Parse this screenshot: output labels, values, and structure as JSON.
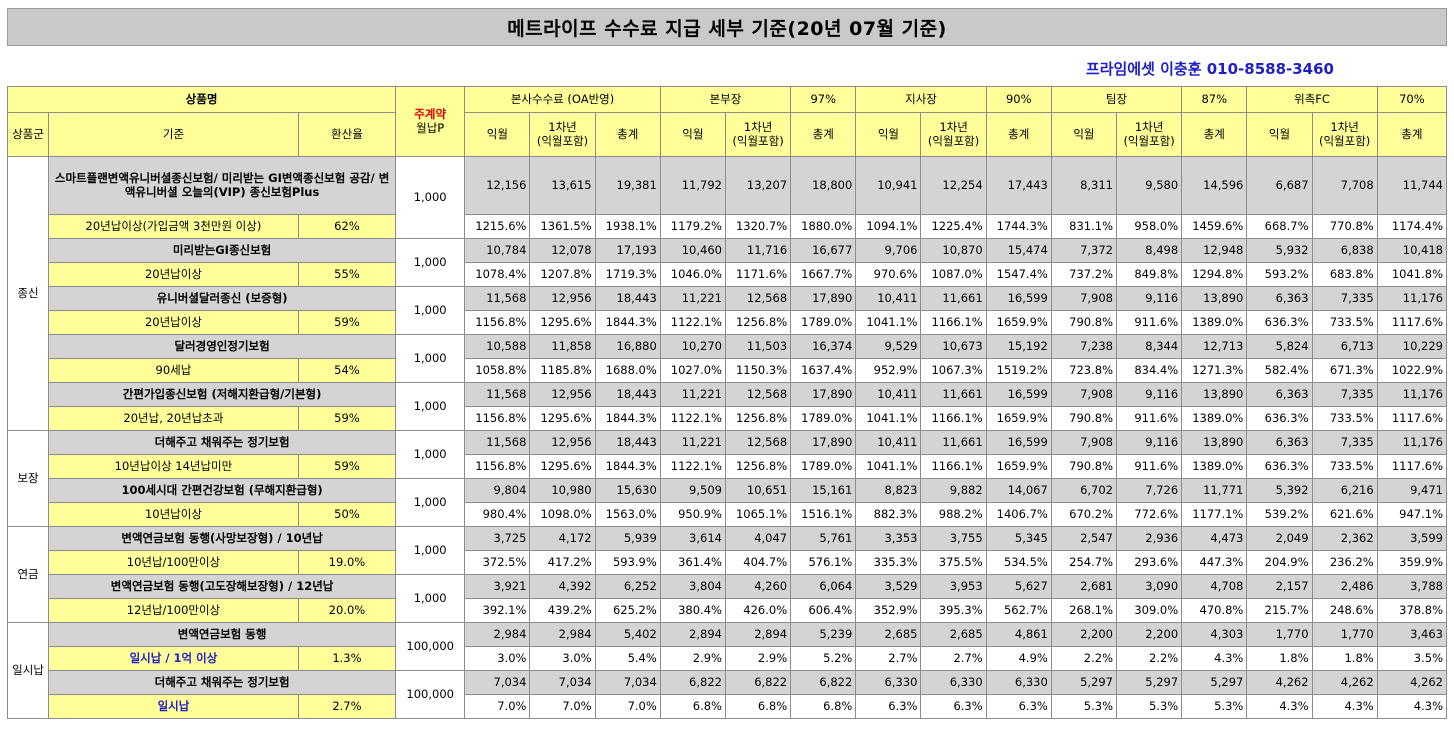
{
  "title": "메트라이프 수수료 지급 세부 기준(20년 07월 기준)",
  "contact": "프라임에셋 이충훈 010-8588-3460",
  "header": {
    "product_name": "상품명",
    "main_contract_line1": "주계약",
    "main_contract_line2": "월납P",
    "group_col": "상품군",
    "criteria_col": "기준",
    "rate_col": "환산율",
    "sections": [
      {
        "label": "본사수수료 (OA반영)",
        "pct": ""
      },
      {
        "label": "본부장",
        "pct": "97%"
      },
      {
        "label": "지사장",
        "pct": "90%"
      },
      {
        "label": "팀장",
        "pct": "87%"
      },
      {
        "label": "위촉FC",
        "pct": "70%"
      }
    ],
    "sub_ik": "익월",
    "sub_1y_line1": "1차년",
    "sub_1y_line2": "(익월포함)",
    "sub_total": "총계"
  },
  "groups": {
    "g1": "종신",
    "g2": "보장",
    "g3": "연금",
    "g4": "일시납"
  },
  "products": [
    {
      "name": "스마트플랜변액유니버셜종신보험/ 미리받는 GI변액종신보험 공감/ 변액유니버셜 오늘의(VIP) 종신보험Plus",
      "criteria": "20년납이상(가입금액 3천만원 이상)",
      "rate": "62%",
      "premium": "1,000",
      "values": [
        "12,156",
        "13,615",
        "19,381",
        "11,792",
        "13,207",
        "18,800",
        "10,941",
        "12,254",
        "17,443",
        "8,311",
        "9,580",
        "14,596",
        "6,687",
        "7,708",
        "11,744"
      ],
      "pcts": [
        "1215.6%",
        "1361.5%",
        "1938.1%",
        "1179.2%",
        "1320.7%",
        "1880.0%",
        "1094.1%",
        "1225.4%",
        "1744.3%",
        "831.1%",
        "958.0%",
        "1459.6%",
        "668.7%",
        "770.8%",
        "1174.4%"
      ]
    },
    {
      "name": "미리받는GI종신보험",
      "criteria": "20년납이상",
      "rate": "55%",
      "premium": "1,000",
      "values": [
        "10,784",
        "12,078",
        "17,193",
        "10,460",
        "11,716",
        "16,677",
        "9,706",
        "10,870",
        "15,474",
        "7,372",
        "8,498",
        "12,948",
        "5,932",
        "6,838",
        "10,418"
      ],
      "pcts": [
        "1078.4%",
        "1207.8%",
        "1719.3%",
        "1046.0%",
        "1171.6%",
        "1667.7%",
        "970.6%",
        "1087.0%",
        "1547.4%",
        "737.2%",
        "849.8%",
        "1294.8%",
        "593.2%",
        "683.8%",
        "1041.8%"
      ]
    },
    {
      "name": "유니버셜달러종신 (보증형)",
      "criteria": "20년납이상",
      "rate": "59%",
      "premium": "1,000",
      "values": [
        "11,568",
        "12,956",
        "18,443",
        "11,221",
        "12,568",
        "17,890",
        "10,411",
        "11,661",
        "16,599",
        "7,908",
        "9,116",
        "13,890",
        "6,363",
        "7,335",
        "11,176"
      ],
      "pcts": [
        "1156.8%",
        "1295.6%",
        "1844.3%",
        "1122.1%",
        "1256.8%",
        "1789.0%",
        "1041.1%",
        "1166.1%",
        "1659.9%",
        "790.8%",
        "911.6%",
        "1389.0%",
        "636.3%",
        "733.5%",
        "1117.6%"
      ]
    },
    {
      "name": "달러경영인정기보험",
      "criteria": "90세납",
      "rate": "54%",
      "premium": "1,000",
      "values": [
        "10,588",
        "11,858",
        "16,880",
        "10,270",
        "11,503",
        "16,374",
        "9,529",
        "10,673",
        "15,192",
        "7,238",
        "8,344",
        "12,713",
        "5,824",
        "6,713",
        "10,229"
      ],
      "pcts": [
        "1058.8%",
        "1185.8%",
        "1688.0%",
        "1027.0%",
        "1150.3%",
        "1637.4%",
        "952.9%",
        "1067.3%",
        "1519.2%",
        "723.8%",
        "834.4%",
        "1271.3%",
        "582.4%",
        "671.3%",
        "1022.9%"
      ]
    },
    {
      "name": "간편가입종신보험 (저해지환급형/기본형)",
      "criteria": "20년납, 20년납초과",
      "rate": "59%",
      "premium": "1,000",
      "values": [
        "11,568",
        "12,956",
        "18,443",
        "11,221",
        "12,568",
        "17,890",
        "10,411",
        "11,661",
        "16,599",
        "7,908",
        "9,116",
        "13,890",
        "6,363",
        "7,335",
        "11,176"
      ],
      "pcts": [
        "1156.8%",
        "1295.6%",
        "1844.3%",
        "1122.1%",
        "1256.8%",
        "1789.0%",
        "1041.1%",
        "1166.1%",
        "1659.9%",
        "790.8%",
        "911.6%",
        "1389.0%",
        "636.3%",
        "733.5%",
        "1117.6%"
      ]
    },
    {
      "name": "더해주고 채워주는 정기보험",
      "criteria": "10년납이상 14년납미만",
      "rate": "59%",
      "premium": "1,000",
      "values": [
        "11,568",
        "12,956",
        "18,443",
        "11,221",
        "12,568",
        "17,890",
        "10,411",
        "11,661",
        "16,599",
        "7,908",
        "9,116",
        "13,890",
        "6,363",
        "7,335",
        "11,176"
      ],
      "pcts": [
        "1156.8%",
        "1295.6%",
        "1844.3%",
        "1122.1%",
        "1256.8%",
        "1789.0%",
        "1041.1%",
        "1166.1%",
        "1659.9%",
        "790.8%",
        "911.6%",
        "1389.0%",
        "636.3%",
        "733.5%",
        "1117.6%"
      ]
    },
    {
      "name": "100세시대 간편건강보험 (무해지환급형)",
      "criteria": "10년납이상",
      "rate": "50%",
      "premium": "1,000",
      "values": [
        "9,804",
        "10,980",
        "15,630",
        "9,509",
        "10,651",
        "15,161",
        "8,823",
        "9,882",
        "14,067",
        "6,702",
        "7,726",
        "11,771",
        "5,392",
        "6,216",
        "9,471"
      ],
      "pcts": [
        "980.4%",
        "1098.0%",
        "1563.0%",
        "950.9%",
        "1065.1%",
        "1516.1%",
        "882.3%",
        "988.2%",
        "1406.7%",
        "670.2%",
        "772.6%",
        "1177.1%",
        "539.2%",
        "621.6%",
        "947.1%"
      ]
    },
    {
      "name": "변액연금보험 동행(사망보장형) / 10년납",
      "criteria": "10년납/100만이상",
      "rate": "19.0%",
      "premium": "1,000",
      "values": [
        "3,725",
        "4,172",
        "5,939",
        "3,614",
        "4,047",
        "5,761",
        "3,353",
        "3,755",
        "5,345",
        "2,547",
        "2,936",
        "4,473",
        "2,049",
        "2,362",
        "3,599"
      ],
      "pcts": [
        "372.5%",
        "417.2%",
        "593.9%",
        "361.4%",
        "404.7%",
        "576.1%",
        "335.3%",
        "375.5%",
        "534.5%",
        "254.7%",
        "293.6%",
        "447.3%",
        "204.9%",
        "236.2%",
        "359.9%"
      ]
    },
    {
      "name": "변액연금보험 동행(고도장해보장형) / 12년납",
      "criteria": "12년납/100만이상",
      "rate": "20.0%",
      "premium": "1,000",
      "values": [
        "3,921",
        "4,392",
        "6,252",
        "3,804",
        "4,260",
        "6,064",
        "3,529",
        "3,953",
        "5,627",
        "2,681",
        "3,090",
        "4,708",
        "2,157",
        "2,486",
        "3,788"
      ],
      "pcts": [
        "392.1%",
        "439.2%",
        "625.2%",
        "380.4%",
        "426.0%",
        "606.4%",
        "352.9%",
        "395.3%",
        "562.7%",
        "268.1%",
        "309.0%",
        "470.8%",
        "215.7%",
        "248.6%",
        "378.8%"
      ]
    },
    {
      "name": "변액연금보험 동행",
      "criteria": "일시납 / 1억 이상",
      "rate": "1.3%",
      "premium": "100,000",
      "values": [
        "2,984",
        "2,984",
        "5,402",
        "2,894",
        "2,894",
        "5,239",
        "2,685",
        "2,685",
        "4,861",
        "2,200",
        "2,200",
        "4,303",
        "1,770",
        "1,770",
        "3,463"
      ],
      "pcts": [
        "3.0%",
        "3.0%",
        "5.4%",
        "2.9%",
        "2.9%",
        "5.2%",
        "2.7%",
        "2.7%",
        "4.9%",
        "2.2%",
        "2.2%",
        "4.3%",
        "1.8%",
        "1.8%",
        "3.5%"
      ]
    },
    {
      "name": "더해주고 채워주는 정기보험",
      "criteria": "일시납",
      "rate": "2.7%",
      "premium": "100,000",
      "values": [
        "7,034",
        "7,034",
        "7,034",
        "6,822",
        "6,822",
        "6,822",
        "6,330",
        "6,330",
        "6,330",
        "5,297",
        "5,297",
        "5,297",
        "4,262",
        "4,262",
        "4,262"
      ],
      "pcts": [
        "7.0%",
        "7.0%",
        "7.0%",
        "6.8%",
        "6.8%",
        "6.8%",
        "6.3%",
        "6.3%",
        "6.3%",
        "5.3%",
        "5.3%",
        "5.3%",
        "4.3%",
        "4.3%",
        "4.3%"
      ]
    }
  ],
  "colors": {
    "header_bg": "#ffff99",
    "product_bg": "#d4d4d4",
    "accent_blue": "#1f1fc8",
    "accent_red": "#e00000"
  }
}
